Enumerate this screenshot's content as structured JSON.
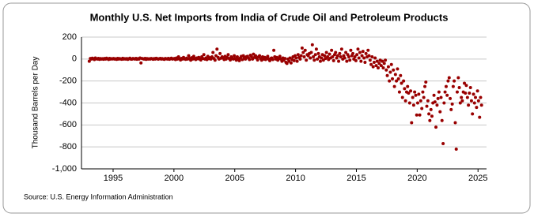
{
  "chart_data": {
    "type": "scatter",
    "title": "Monthly U.S. Net Imports from India of Crude Oil and Petroleum Products",
    "y_label": "Thousand Barrels per Day",
    "source": "Source: U.S. Energy Information Administration",
    "color": "#990000",
    "grid": true,
    "xlim": [
      1992.4,
      2025.7
    ],
    "xticks": [
      1995,
      2000,
      2005,
      2010,
      2015,
      2020,
      2025
    ],
    "ylim": [
      -1000,
      200
    ],
    "yticks": [
      {
        "value": -1000,
        "label": "-1,000"
      },
      -800,
      -600,
      -400,
      -200,
      0,
      200
    ],
    "x": [
      1993.04,
      1993.13,
      1993.21,
      1993.29,
      1993.38,
      1993.46,
      1993.54,
      1993.63,
      1993.71,
      1993.79,
      1993.88,
      1993.96,
      1994.04,
      1994.13,
      1994.21,
      1994.29,
      1994.38,
      1994.46,
      1994.54,
      1994.63,
      1994.71,
      1994.79,
      1994.88,
      1994.96,
      1995.04,
      1995.13,
      1995.21,
      1995.29,
      1995.38,
      1995.46,
      1995.54,
      1995.63,
      1995.71,
      1995.79,
      1995.88,
      1995.96,
      1996.04,
      1996.13,
      1996.21,
      1996.29,
      1996.38,
      1996.46,
      1996.54,
      1996.63,
      1996.71,
      1996.79,
      1996.88,
      1996.96,
      1997.04,
      1997.13,
      1997.21,
      1997.29,
      1997.38,
      1997.46,
      1997.54,
      1997.63,
      1997.71,
      1997.79,
      1997.88,
      1997.96,
      1998.04,
      1998.13,
      1998.21,
      1998.29,
      1998.38,
      1998.46,
      1998.54,
      1998.63,
      1998.71,
      1998.79,
      1998.88,
      1998.96,
      1999.04,
      1999.13,
      1999.21,
      1999.29,
      1999.38,
      1999.46,
      1999.54,
      1999.63,
      1999.71,
      1999.79,
      1999.88,
      1999.96,
      2000.04,
      2000.13,
      2000.21,
      2000.29,
      2000.38,
      2000.46,
      2000.54,
      2000.63,
      2000.71,
      2000.79,
      2000.88,
      2000.96,
      2001.04,
      2001.13,
      2001.21,
      2001.29,
      2001.38,
      2001.46,
      2001.54,
      2001.63,
      2001.71,
      2001.79,
      2001.88,
      2001.96,
      2002.04,
      2002.13,
      2002.21,
      2002.29,
      2002.38,
      2002.46,
      2002.54,
      2002.63,
      2002.71,
      2002.79,
      2002.88,
      2002.96,
      2003.04,
      2003.13,
      2003.21,
      2003.29,
      2003.38,
      2003.46,
      2003.54,
      2003.63,
      2003.71,
      2003.79,
      2003.88,
      2003.96,
      2004.04,
      2004.13,
      2004.21,
      2004.29,
      2004.38,
      2004.46,
      2004.54,
      2004.63,
      2004.71,
      2004.79,
      2004.88,
      2004.96,
      2005.04,
      2005.13,
      2005.21,
      2005.29,
      2005.38,
      2005.46,
      2005.54,
      2005.63,
      2005.71,
      2005.79,
      2005.88,
      2005.96,
      2006.04,
      2006.13,
      2006.21,
      2006.29,
      2006.38,
      2006.46,
      2006.54,
      2006.63,
      2006.71,
      2006.79,
      2006.88,
      2006.96,
      2007.04,
      2007.13,
      2007.21,
      2007.29,
      2007.38,
      2007.46,
      2007.54,
      2007.63,
      2007.71,
      2007.79,
      2007.88,
      2007.96,
      2008.04,
      2008.13,
      2008.21,
      2008.29,
      2008.38,
      2008.46,
      2008.54,
      2008.63,
      2008.71,
      2008.79,
      2008.88,
      2008.96,
      2009.04,
      2009.13,
      2009.21,
      2009.29,
      2009.38,
      2009.46,
      2009.54,
      2009.63,
      2009.71,
      2009.79,
      2009.88,
      2009.96,
      2010.04,
      2010.13,
      2010.21,
      2010.29,
      2010.38,
      2010.46,
      2010.54,
      2010.63,
      2010.71,
      2010.79,
      2010.88,
      2010.96,
      2011.04,
      2011.13,
      2011.21,
      2011.29,
      2011.38,
      2011.46,
      2011.54,
      2011.63,
      2011.71,
      2011.79,
      2011.88,
      2011.96,
      2012.04,
      2012.13,
      2012.21,
      2012.29,
      2012.38,
      2012.46,
      2012.54,
      2012.63,
      2012.71,
      2012.79,
      2012.88,
      2012.96,
      2013.04,
      2013.13,
      2013.21,
      2013.29,
      2013.38,
      2013.46,
      2013.54,
      2013.63,
      2013.71,
      2013.79,
      2013.88,
      2013.96,
      2014.04,
      2014.13,
      2014.21,
      2014.29,
      2014.38,
      2014.46,
      2014.54,
      2014.63,
      2014.71,
      2014.79,
      2014.88,
      2014.96,
      2015.04,
      2015.13,
      2015.21,
      2015.29,
      2015.38,
      2015.46,
      2015.54,
      2015.63,
      2015.71,
      2015.79,
      2015.88,
      2015.96,
      2016.04,
      2016.13,
      2016.21,
      2016.29,
      2016.38,
      2016.46,
      2016.54,
      2016.63,
      2016.71,
      2016.79,
      2016.88,
      2016.96,
      2017.04,
      2017.13,
      2017.21,
      2017.29,
      2017.38,
      2017.46,
      2017.54,
      2017.63,
      2017.71,
      2017.79,
      2017.88,
      2017.96,
      2018.04,
      2018.13,
      2018.21,
      2018.29,
      2018.38,
      2018.46,
      2018.54,
      2018.63,
      2018.71,
      2018.79,
      2018.88,
      2018.96,
      2019.04,
      2019.13,
      2019.21,
      2019.29,
      2019.38,
      2019.46,
      2019.54,
      2019.63,
      2019.71,
      2019.79,
      2019.88,
      2019.96,
      2020.04,
      2020.13,
      2020.21,
      2020.29,
      2020.38,
      2020.46,
      2020.54,
      2020.63,
      2020.71,
      2020.79,
      2020.88,
      2020.96,
      2021.04,
      2021.13,
      2021.21,
      2021.29,
      2021.38,
      2021.46,
      2021.54,
      2021.63,
      2021.71,
      2021.79,
      2021.88,
      2021.96,
      2022.04,
      2022.13,
      2022.21,
      2022.29,
      2022.38,
      2022.46,
      2022.54,
      2022.63,
      2022.71,
      2022.79,
      2022.88,
      2022.96,
      2023.04,
      2023.13,
      2023.21,
      2023.29,
      2023.38,
      2023.46,
      2023.54,
      2023.63,
      2023.71,
      2023.79,
      2023.88,
      2023.96,
      2024.04,
      2024.13,
      2024.21,
      2024.29,
      2024.38,
      2024.46,
      2024.54,
      2024.63,
      2024.71,
      2024.79,
      2024.88,
      2024.96,
      2025.04,
      2025.13,
      2025.21,
      2025.29
    ],
    "values": [
      -20,
      5,
      0,
      8,
      3,
      -5,
      10,
      2,
      0,
      6,
      -3,
      4,
      0,
      3,
      -2,
      5,
      0,
      8,
      2,
      -4,
      6,
      0,
      3,
      1,
      5,
      0,
      2,
      -3,
      6,
      0,
      4,
      1,
      -2,
      7,
      0,
      3,
      0,
      4,
      -3,
      2,
      8,
      0,
      -1,
      5,
      2,
      0,
      6,
      -2,
      3,
      0,
      10,
      -35,
      5,
      2,
      0,
      6,
      -3,
      4,
      0,
      2,
      0,
      5,
      2,
      -2,
      4,
      0,
      7,
      3,
      -1,
      2,
      6,
      0,
      4,
      0,
      -3,
      5,
      2,
      0,
      6,
      -2,
      3,
      8,
      0,
      2,
      5,
      -5,
      10,
      0,
      20,
      3,
      -8,
      6,
      0,
      15,
      2,
      -3,
      8,
      0,
      30,
      5,
      -10,
      12,
      0,
      25,
      4,
      -5,
      10,
      2,
      15,
      0,
      -8,
      20,
      5,
      40,
      0,
      10,
      -5,
      25,
      3,
      12,
      0,
      20,
      60,
      5,
      -10,
      30,
      90,
      15,
      0,
      50,
      8,
      20,
      10,
      -5,
      25,
      0,
      15,
      40,
      5,
      -8,
      20,
      10,
      0,
      30,
      5,
      -10,
      20,
      0,
      -15,
      10,
      25,
      -5,
      30,
      15,
      0,
      20,
      25,
      10,
      -5,
      35,
      20,
      0,
      45,
      15,
      30,
      10,
      -8,
      20,
      30,
      5,
      -10,
      20,
      0,
      15,
      -5,
      10,
      25,
      0,
      -15,
      5,
      10,
      -5,
      80,
      20,
      0,
      15,
      -10,
      5,
      25,
      0,
      -20,
      10,
      -10,
      5,
      -30,
      -40,
      0,
      -20,
      10,
      -35,
      -5,
      20,
      -15,
      30,
      10,
      -20,
      40,
      15,
      0,
      30,
      100,
      60,
      20,
      80,
      -10,
      40,
      30,
      50,
      10,
      60,
      130,
      20,
      -10,
      40,
      90,
      0,
      50,
      20,
      -20,
      10,
      40,
      -10,
      30,
      5,
      60,
      20,
      -5,
      45,
      10,
      80,
      20,
      -15,
      40,
      60,
      10,
      30,
      -20,
      50,
      20,
      90,
      0,
      30,
      10,
      60,
      -20,
      40,
      20,
      -10,
      80,
      30,
      50,
      0,
      20,
      -15,
      40,
      90,
      10,
      60,
      -20,
      30,
      70,
      10,
      -30,
      50,
      20,
      80,
      30,
      -10,
      -50,
      20,
      -70,
      -30,
      10,
      -60,
      -20,
      -80,
      -40,
      -10,
      -60,
      -20,
      -80,
      -40,
      -10,
      -100,
      -150,
      -70,
      -200,
      -120,
      -50,
      -180,
      -100,
      -250,
      -140,
      -200,
      -90,
      -180,
      -300,
      -150,
      -220,
      -350,
      -200,
      -270,
      -380,
      -300,
      -250,
      -310,
      -400,
      -290,
      -580,
      -350,
      -420,
      -300,
      -330,
      -510,
      -400,
      -320,
      -510,
      -380,
      -450,
      -300,
      -350,
      -250,
      -210,
      -430,
      -380,
      -500,
      -560,
      -460,
      -520,
      -400,
      -330,
      -390,
      -620,
      -420,
      -360,
      -300,
      -480,
      -350,
      -560,
      -770,
      -400,
      -300,
      -250,
      -330,
      -200,
      -170,
      -360,
      -460,
      -410,
      -250,
      -200,
      -580,
      -820,
      -300,
      -170,
      -260,
      -400,
      -350,
      -380,
      -300,
      -220,
      -310,
      -240,
      -350,
      -420,
      -310,
      -260,
      -380,
      -500,
      -320,
      -400,
      -350,
      -440,
      -290,
      -380,
      -530,
      -350,
      -420
    ]
  }
}
